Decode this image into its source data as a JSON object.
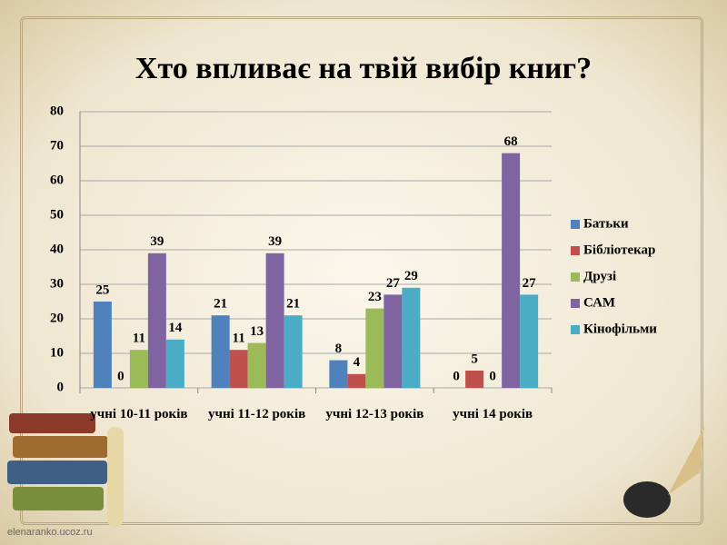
{
  "chart_data": {
    "type": "bar",
    "title": "Хто впливає на твій вибір книг?",
    "categories": [
      "учні 10-11 років",
      "учні 11-12 років",
      "учні 12-13 років",
      "учні 14 років"
    ],
    "series": [
      {
        "name": "Батьки",
        "color": "#4f81bd",
        "values": [
          25,
          21,
          8,
          0
        ]
      },
      {
        "name": "Бібліотекар",
        "color": "#c0504d",
        "values": [
          0,
          11,
          4,
          5
        ]
      },
      {
        "name": "Друзі",
        "color": "#9bbb59",
        "values": [
          11,
          13,
          23,
          0
        ]
      },
      {
        "name": "САМ",
        "color": "#8064a2",
        "values": [
          39,
          39,
          27,
          68
        ]
      },
      {
        "name": "Кінофільми",
        "color": "#4bacc6",
        "values": [
          14,
          21,
          29,
          27
        ]
      }
    ],
    "ylim": [
      0,
      80
    ],
    "yticks": [
      0,
      10,
      20,
      30,
      40,
      50,
      60,
      70,
      80
    ],
    "grid": true,
    "legend": "right"
  },
  "watermark": "elenaranko.ucoz.ru"
}
